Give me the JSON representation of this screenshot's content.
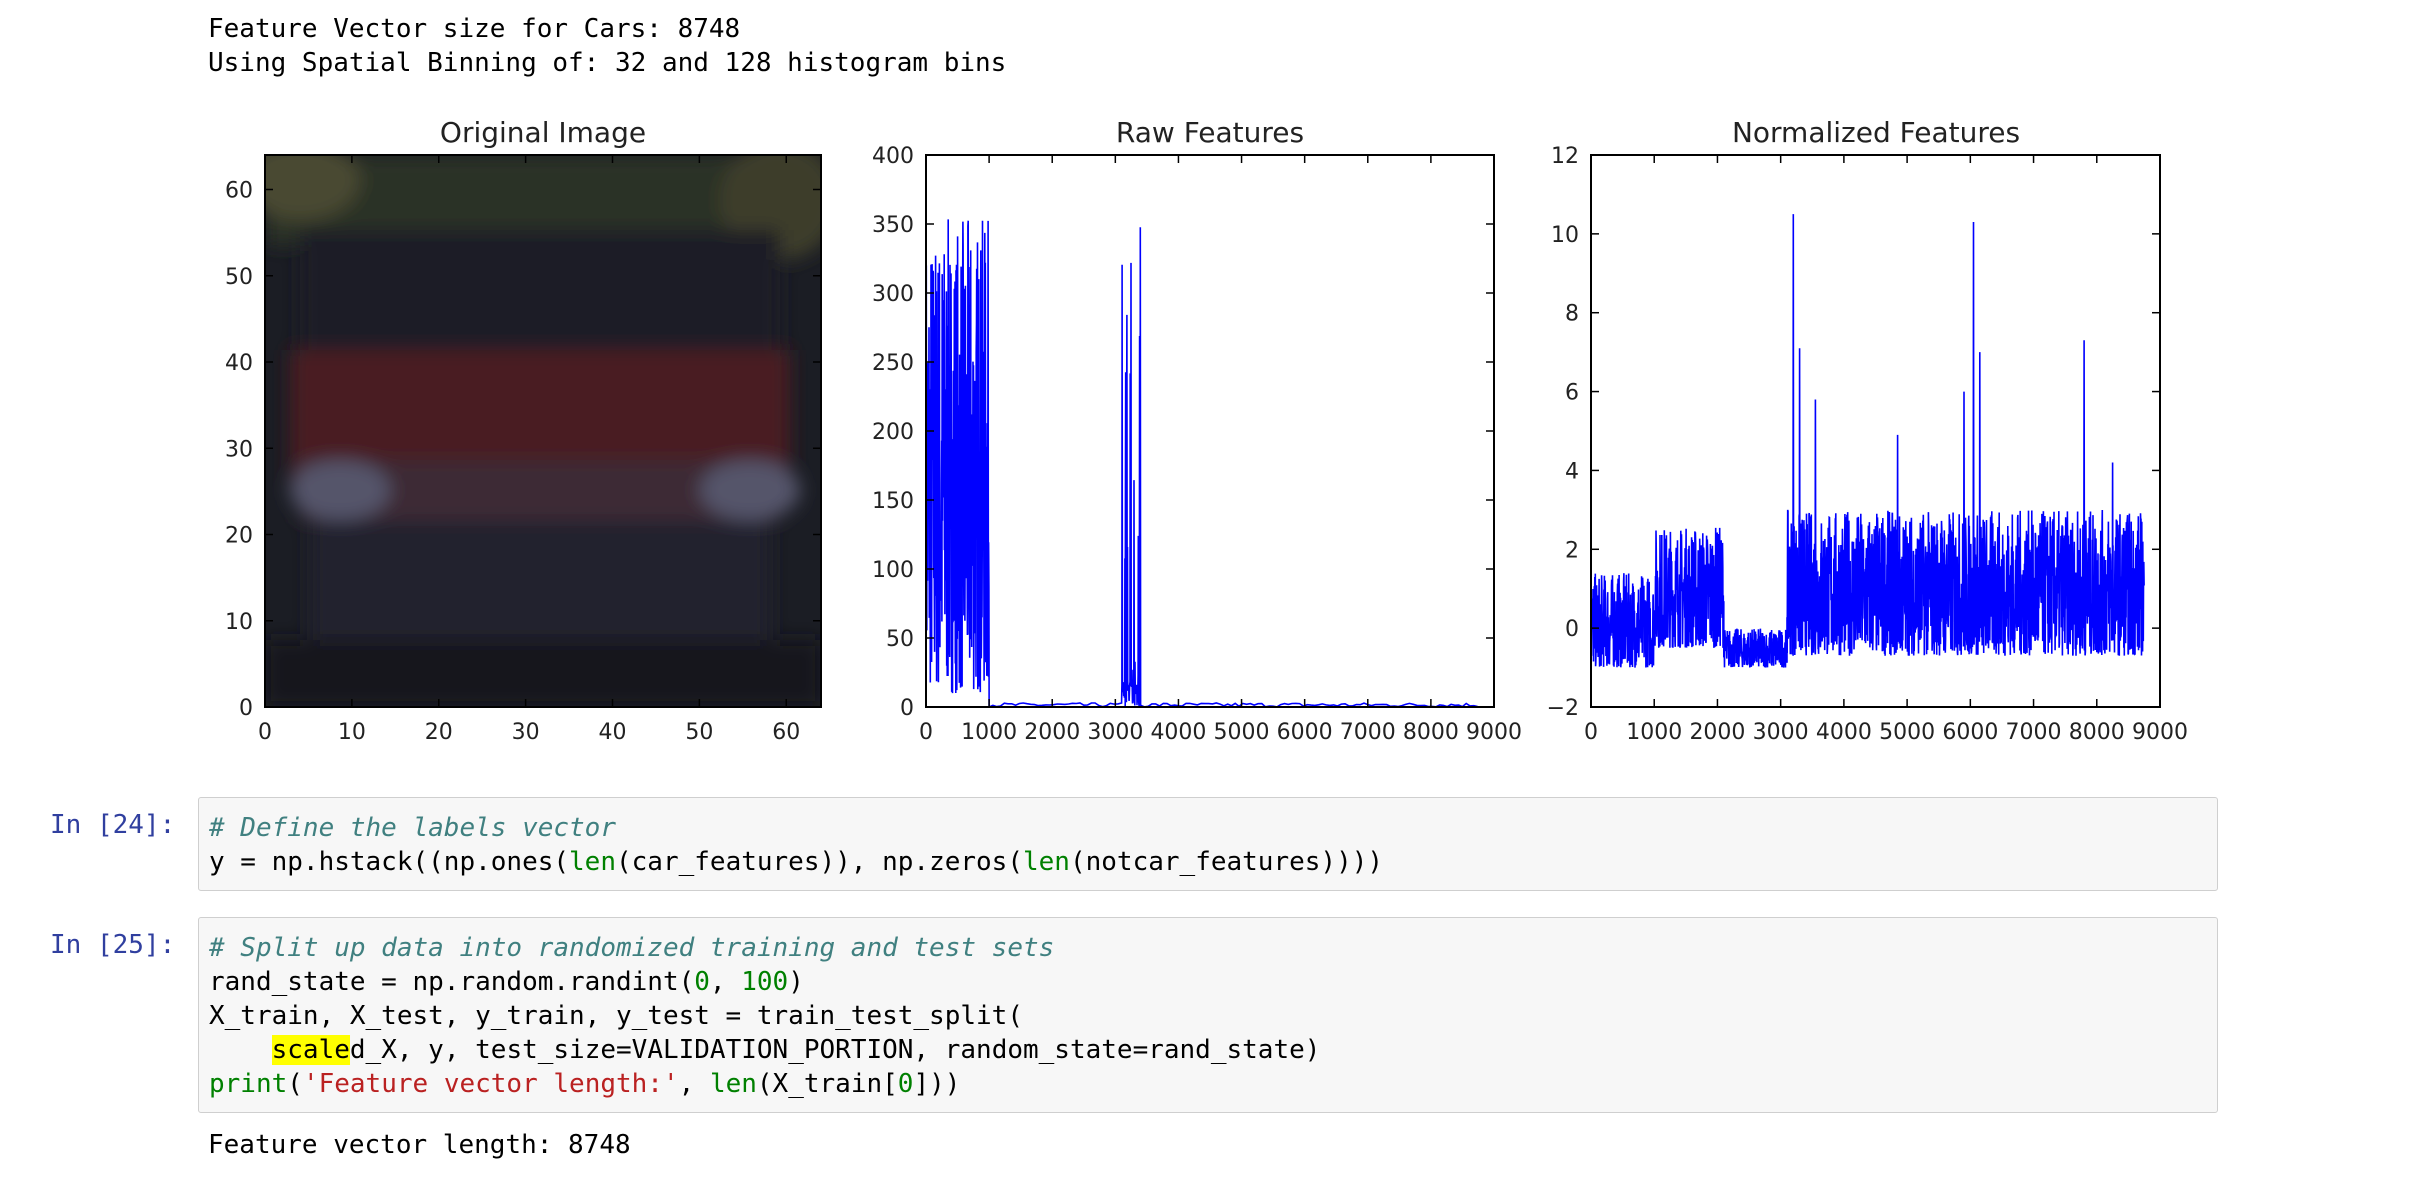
{
  "output1": {
    "line1": "Feature Vector size for Cars: 8748",
    "line2": "Using Spatial Binning of: 32 and 128 histogram bins"
  },
  "cell24": {
    "prompt": "In [24]:",
    "comment": "# Define the labels vector",
    "line2": {
      "a": "y = np.hstack((np.ones(",
      "len1": "len",
      "b": "(car_features)), np.zeros(",
      "len2": "len",
      "c": "(notcar_features))))"
    }
  },
  "cell25": {
    "prompt": "In [25]:",
    "comment": "# Split up data into randomized training and test sets",
    "line2": {
      "a": "rand_state = np.random.randint(",
      "n1": "0",
      "b": ", ",
      "n2": "100",
      "c": ")"
    },
    "line3": "X_train, X_test, y_train, y_test = train_test_split(",
    "line4": {
      "indent": "    ",
      "hl": "scale",
      "rest": "d_X, y, test_size=VALIDATION_PORTION, random_state=rand_state)"
    },
    "line5": {
      "print": "print",
      "a": "(",
      "str": "'Feature vector length:'",
      "b": ", ",
      "len": "len",
      "c": "(X_train[",
      "n": "0",
      "d": "]))"
    }
  },
  "output2": {
    "line1": "Feature vector length: 8748"
  },
  "chart_data": [
    {
      "type": "image",
      "title": "Original Image",
      "xticks": [
        0,
        10,
        20,
        30,
        40,
        50,
        60
      ],
      "yticks": [
        0,
        10,
        20,
        30,
        40,
        50,
        60
      ],
      "xlim": [
        0,
        64
      ],
      "ylim": [
        64,
        0
      ],
      "content": "blurred low-resolution car image, dark red body"
    },
    {
      "type": "line",
      "title": "Raw Features",
      "xlim": [
        0,
        9000
      ],
      "ylim": [
        0,
        400
      ],
      "xticks": [
        0,
        1000,
        2000,
        3000,
        4000,
        5000,
        6000,
        7000,
        8000,
        9000
      ],
      "yticks": [
        0,
        50,
        100,
        150,
        200,
        250,
        300,
        350,
        400
      ],
      "color": "#0000ff",
      "segments": [
        {
          "x0": 0,
          "x1": 1000,
          "min": 10,
          "max": 355,
          "kind": "dense"
        },
        {
          "x0": 1000,
          "x1": 3100,
          "min": 0,
          "max": 3,
          "kind": "flat"
        },
        {
          "x0": 3100,
          "x1": 3400,
          "min": 0,
          "max": 350,
          "kind": "spikes"
        },
        {
          "x0": 3400,
          "x1": 8748,
          "min": 0,
          "max": 3,
          "kind": "flat"
        }
      ]
    },
    {
      "type": "line",
      "title": "Normalized Features",
      "xlim": [
        0,
        9000
      ],
      "ylim": [
        -2,
        12
      ],
      "xticks": [
        0,
        1000,
        2000,
        3000,
        4000,
        5000,
        6000,
        7000,
        8000,
        9000
      ],
      "yticks": [
        -2,
        0,
        2,
        4,
        6,
        8,
        10,
        12
      ],
      "color": "#0000ff",
      "segments": [
        {
          "x0": 0,
          "x1": 1000,
          "min": -1,
          "max": 1.4,
          "kind": "dense"
        },
        {
          "x0": 1000,
          "x1": 2100,
          "min": -0.5,
          "max": 2.6,
          "kind": "dense"
        },
        {
          "x0": 2100,
          "x1": 3100,
          "min": -1,
          "max": 0,
          "kind": "dense"
        },
        {
          "x0": 3100,
          "x1": 8748,
          "min": -0.7,
          "max": 3,
          "kind": "dense"
        }
      ],
      "peaks": [
        [
          3200,
          10.5
        ],
        [
          6050,
          10.3
        ],
        [
          7800,
          7.3
        ],
        [
          3300,
          7.1
        ],
        [
          6150,
          7.0
        ],
        [
          3550,
          5.8
        ],
        [
          5900,
          6.0
        ],
        [
          8250,
          4.2
        ],
        [
          4850,
          4.9
        ]
      ]
    }
  ]
}
